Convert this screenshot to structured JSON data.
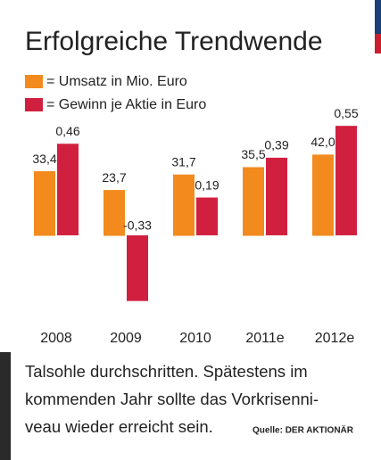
{
  "chart_data": {
    "type": "bar",
    "title": "Erfolgreiche Trendwende",
    "categories": [
      "2008",
      "2009",
      "2010",
      "2011e",
      "2012e"
    ],
    "series": [
      {
        "name": "= Umsatz in Mio. Euro",
        "color": "#f28a1e",
        "values": [
          33.4,
          23.7,
          31.7,
          35.5,
          42.0
        ],
        "value_labels": [
          "33,4",
          "23,7",
          "31,7",
          "35,5",
          "42,0"
        ]
      },
      {
        "name": "= Gewinn je Aktie in Euro",
        "color": "#d1203f",
        "axis": "y2",
        "values": [
          0.46,
          -0.33,
          0.19,
          0.39,
          0.55
        ],
        "value_labels": [
          "0,46",
          "-0,33",
          "0,19",
          "0,39",
          "0,55"
        ]
      }
    ],
    "ylim": [
      -44,
      62
    ],
    "y2lim": [
      -0.43,
      0.6
    ],
    "caption": [
      "Talsohle durchschritten. Spätestens im",
      "kommenden Jahr sollte das Vorkrisenni-",
      "veau wieder erreicht sein."
    ],
    "source": "Quelle: DER AKTIONÄR"
  }
}
